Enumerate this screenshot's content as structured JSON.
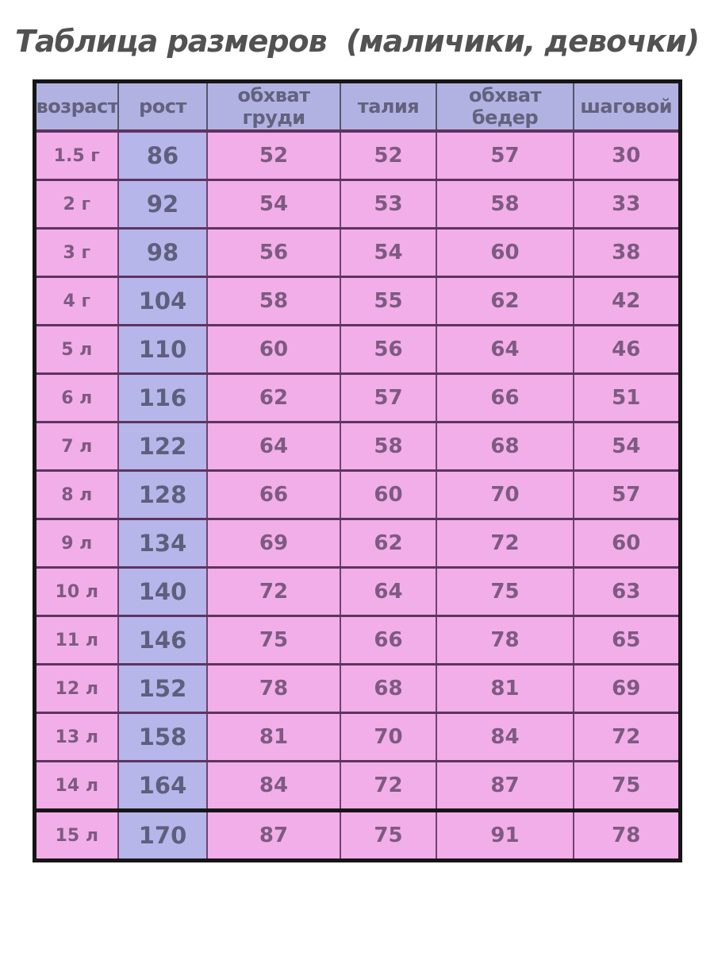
{
  "title": "Таблица размеров  (маличики, девочки)",
  "table": {
    "columns": [
      {
        "key": "age",
        "label": "возраст"
      },
      {
        "key": "height",
        "label": "рост"
      },
      {
        "key": "chest",
        "label": "обхват груди"
      },
      {
        "key": "waist",
        "label": "талия"
      },
      {
        "key": "hips",
        "label": "обхват бедер"
      },
      {
        "key": "inseam",
        "label": "шаговой"
      }
    ],
    "rows": [
      [
        "1.5 г",
        "86",
        "52",
        "52",
        "57",
        "30"
      ],
      [
        "2 г",
        "92",
        "54",
        "53",
        "58",
        "33"
      ],
      [
        "3 г",
        "98",
        "56",
        "54",
        "60",
        "38"
      ],
      [
        "4 г",
        "104",
        "58",
        "55",
        "62",
        "42"
      ],
      [
        "5 л",
        "110",
        "60",
        "56",
        "64",
        "46"
      ],
      [
        "6 л",
        "116",
        "62",
        "57",
        "66",
        "51"
      ],
      [
        "7 л",
        "122",
        "64",
        "58",
        "68",
        "54"
      ],
      [
        "8 л",
        "128",
        "66",
        "60",
        "70",
        "57"
      ],
      [
        "9 л",
        "134",
        "69",
        "62",
        "72",
        "60"
      ],
      [
        "10 л",
        "140",
        "72",
        "64",
        "75",
        "63"
      ],
      [
        "11 л",
        "146",
        "75",
        "66",
        "78",
        "65"
      ],
      [
        "12 л",
        "152",
        "78",
        "68",
        "81",
        "69"
      ],
      [
        "13 л",
        "158",
        "81",
        "70",
        "84",
        "72"
      ],
      [
        "14 л",
        "164",
        "84",
        "72",
        "87",
        "75"
      ],
      [
        "15 л",
        "170",
        "87",
        "75",
        "91",
        "78"
      ]
    ]
  },
  "chart_data": {
    "type": "table",
    "title": "Таблица размеров  (маличики, девочки)",
    "columns": [
      "возраст",
      "рост",
      "обхват груди",
      "талия",
      "обхват бедер",
      "шаговой"
    ],
    "rows": [
      [
        "1.5 г",
        86,
        52,
        52,
        57,
        30
      ],
      [
        "2 г",
        92,
        54,
        53,
        58,
        33
      ],
      [
        "3 г",
        98,
        56,
        54,
        60,
        38
      ],
      [
        "4 г",
        104,
        58,
        55,
        62,
        42
      ],
      [
        "5 л",
        110,
        60,
        56,
        64,
        46
      ],
      [
        "6 л",
        116,
        62,
        57,
        66,
        51
      ],
      [
        "7 л",
        122,
        64,
        58,
        68,
        54
      ],
      [
        "8 л",
        128,
        66,
        60,
        70,
        57
      ],
      [
        "9 л",
        134,
        69,
        62,
        72,
        60
      ],
      [
        "10 л",
        140,
        72,
        64,
        75,
        63
      ],
      [
        "11 л",
        146,
        75,
        66,
        78,
        65
      ],
      [
        "12 л",
        152,
        78,
        68,
        81,
        69
      ],
      [
        "13 л",
        158,
        81,
        70,
        84,
        72
      ],
      [
        "14 л",
        164,
        84,
        72,
        87,
        75
      ],
      [
        "15 л",
        170,
        87,
        75,
        91,
        78
      ]
    ]
  },
  "colors": {
    "header_bg": "#b2b2e2",
    "height_col_bg": "#b6b6ea",
    "cell_bg": "#f2aee8",
    "cell_text": "#7d5a82",
    "header_text": "#62627e",
    "row_border": "#5e3460",
    "outer_border": "#161616",
    "title_text": "#525252"
  }
}
